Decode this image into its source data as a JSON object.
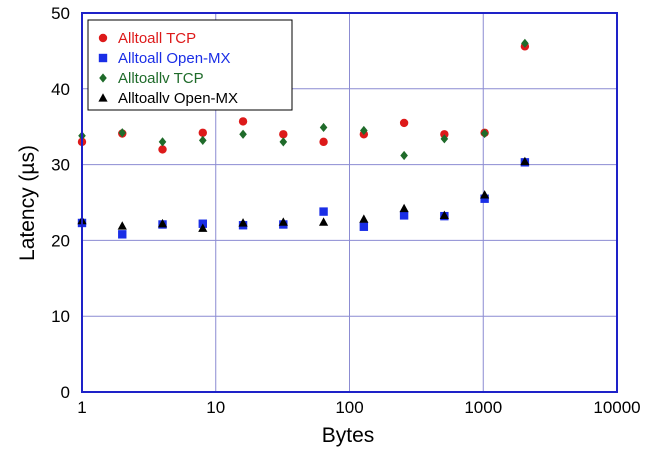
{
  "chart_data": {
    "type": "scatter",
    "title": "",
    "xlabel": "Bytes",
    "ylabel": "Latency (µs)",
    "xscale": "log",
    "xlim": [
      1,
      10000
    ],
    "ylim": [
      0,
      50
    ],
    "xticks": [
      1,
      10,
      100,
      1000,
      10000
    ],
    "xtick_labels": [
      "1",
      "10",
      "100",
      "1000",
      "10000"
    ],
    "yticks": [
      0,
      10,
      20,
      30,
      40,
      50
    ],
    "ytick_labels": [
      "0",
      "10",
      "20",
      "30",
      "40",
      "50"
    ],
    "grid": true,
    "legend_position": "top-left",
    "frame_color": "#1e22c8",
    "grid_color": "#8c8cd2",
    "x": [
      1,
      2,
      4,
      8,
      16,
      32,
      64,
      128,
      256,
      512,
      1024,
      2048
    ],
    "series": [
      {
        "name": "Alltoall TCP",
        "marker": "circle",
        "color": "#dd1a1a",
        "values": [
          33.0,
          34.1,
          32.0,
          34.2,
          35.7,
          34.0,
          33.0,
          34.0,
          35.5,
          34.0,
          34.2,
          45.6
        ]
      },
      {
        "name": "Alltoall Open-MX",
        "marker": "square",
        "color": "#1a2ee6",
        "values": [
          22.3,
          20.8,
          22.1,
          22.2,
          22.0,
          22.1,
          23.8,
          21.8,
          23.3,
          23.2,
          25.5,
          30.3
        ]
      },
      {
        "name": "Alltoallv TCP",
        "marker": "diamond",
        "color": "#1f6b2a",
        "values": [
          33.8,
          34.2,
          33.0,
          33.2,
          34.0,
          33.0,
          34.9,
          34.5,
          31.2,
          33.4,
          34.1,
          46.0
        ]
      },
      {
        "name": "Alltoallv Open-MX",
        "marker": "triangle",
        "color": "#000000",
        "values": [
          22.6,
          21.9,
          22.2,
          21.6,
          22.3,
          22.4,
          22.4,
          22.8,
          24.2,
          23.3,
          26.0,
          30.4
        ]
      }
    ]
  }
}
